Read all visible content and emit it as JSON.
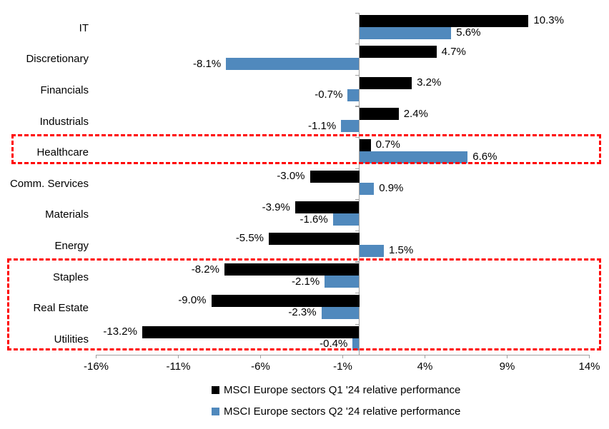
{
  "chart_data": {
    "type": "bar",
    "orientation": "horizontal",
    "title": "",
    "categories": [
      "IT",
      "Discretionary",
      "Financials",
      "Industrials",
      "Healthcare",
      "Comm. Services",
      "Materials",
      "Energy",
      "Staples",
      "Real Estate",
      "Utilities"
    ],
    "series": [
      {
        "name": "MSCI Europe sectors Q1 '24 relative performance",
        "color": "#000000",
        "values": [
          10.3,
          4.7,
          3.2,
          2.4,
          0.7,
          -3.0,
          -3.9,
          -5.5,
          -8.2,
          -9.0,
          -13.2
        ]
      },
      {
        "name": "MSCI Europe sectors Q2 '24 relative performance",
        "color": "#5089BD",
        "values": [
          5.6,
          -8.1,
          -0.7,
          -1.1,
          6.6,
          0.9,
          -1.6,
          1.5,
          -2.1,
          -2.3,
          -0.4
        ]
      }
    ],
    "data_labels": [
      [
        "10.3%",
        "4.7%",
        "3.2%",
        "2.4%",
        "0.7%",
        "-3.0%",
        "-3.9%",
        "-5.5%",
        "-8.2%",
        "-9.0%",
        "-13.2%"
      ],
      [
        "5.6%",
        "-8.1%",
        "-0.7%",
        "-1.1%",
        "6.6%",
        "0.9%",
        "-1.6%",
        "1.5%",
        "-2.1%",
        "-2.3%",
        "-0.4%"
      ]
    ],
    "x_ticks": {
      "values": [
        -16,
        -11,
        -6,
        -1,
        4,
        9,
        14
      ],
      "labels": [
        "-16%",
        "-11%",
        "-6%",
        "-1%",
        "4%",
        "9%",
        "14%"
      ]
    },
    "xlim": [
      -16,
      14
    ],
    "grid": false,
    "axis_color": "#a0a0a0",
    "legend_position": "bottom",
    "highlights": [
      {
        "name": "highlight-box-healthcare",
        "categories": [
          "Healthcare"
        ],
        "color": "#FF0000",
        "style": "dashed"
      },
      {
        "name": "highlight-box-defensives",
        "categories": [
          "Staples",
          "Real Estate",
          "Utilities"
        ],
        "color": "#FF0000",
        "style": "dashed"
      }
    ]
  }
}
